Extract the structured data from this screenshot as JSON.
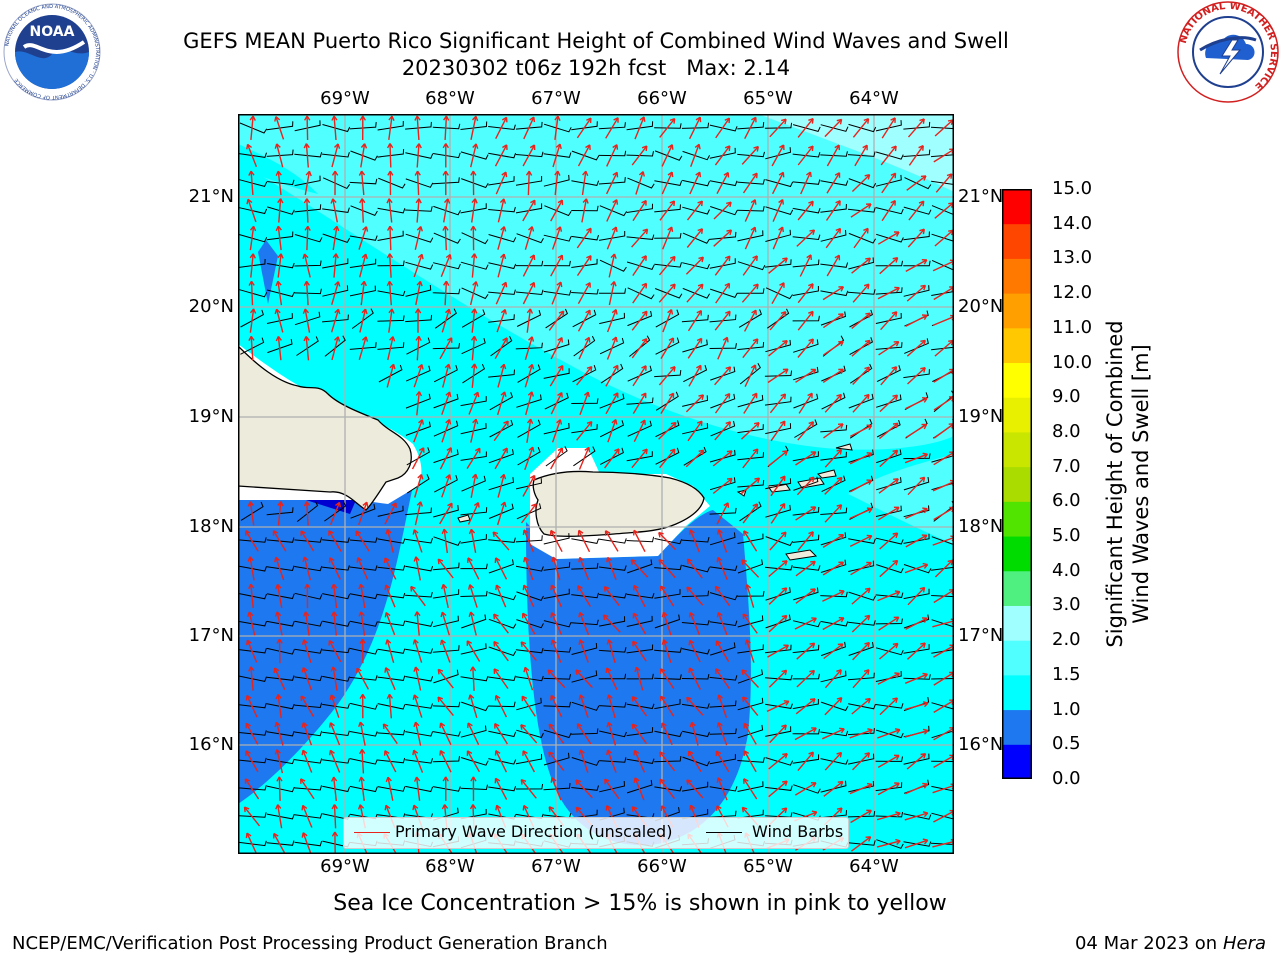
{
  "title": {
    "line1": "GEFS MEAN Puerto Rico Significant Height of Combined Wind Waves and Swell",
    "line2": "20230302 t06z 192h fcst   Max: 2.14"
  },
  "logos": {
    "noaa": {
      "text": "NOAA",
      "ring_text": "NATIONAL OCEANIC AND ATMOSPHERIC ADMINISTRATION · U.S. DEPARTMENT OF COMMERCE",
      "color": "#1f3f8f"
    },
    "nws": {
      "ring_text": "NATIONAL WEATHER SERVICE",
      "color": "#d22020"
    }
  },
  "map": {
    "lon_labels": [
      "69°W",
      "68°W",
      "67°W",
      "66°W",
      "65°W",
      "64°W"
    ],
    "lat_labels": [
      "21°N",
      "20°N",
      "19°N",
      "18°N",
      "17°N",
      "16°N"
    ],
    "lon_range": [
      -70.0,
      -63.25
    ],
    "lat_range": [
      15.0,
      21.75
    ],
    "grid": true,
    "colors": {
      "land": "#ecebdc",
      "coast": "#000000",
      "wave_direction": "#e8231c",
      "wind_barb": "#000000",
      "gridline": "#b0b0b0"
    }
  },
  "legend": {
    "wave_direction_label": "Primary Wave Direction (unscaled)",
    "wind_barbs_label": "Wind Barbs"
  },
  "colorbar": {
    "label_line1": "Significant Height of Combined",
    "label_line2": "Wind Waves and Swell [m]",
    "ticks": [
      "15.0",
      "14.0",
      "13.0",
      "12.0",
      "11.0",
      "10.0",
      "9.0",
      "8.0",
      "7.0",
      "6.0",
      "5.0",
      "4.0",
      "3.0",
      "2.0",
      "1.5",
      "1.0",
      "0.5",
      "0.0"
    ],
    "levels": [
      0,
      0.5,
      1.0,
      1.5,
      2.0,
      3.0,
      4.0,
      5.0,
      6.0,
      7.0,
      8.0,
      9.0,
      10.0,
      11.0,
      12.0,
      13.0,
      14.0,
      15.0
    ],
    "colors": [
      "#0000ff",
      "#1e78f0",
      "#00ffff",
      "#50ffff",
      "#a0ffff",
      "#50f080",
      "#00dc00",
      "#50e400",
      "#aadc00",
      "#c8e600",
      "#e8f000",
      "#ffff00",
      "#ffc800",
      "#ffa000",
      "#ff7800",
      "#ff4600",
      "#ff0000"
    ]
  },
  "caption": "Sea Ice Concentration > 15% is shown in pink to yellow",
  "footer": {
    "left": "NCEP/EMC/Verification Post Processing Product Generation Branch",
    "date": "04 Mar 2023 on",
    "host": "Hera"
  }
}
